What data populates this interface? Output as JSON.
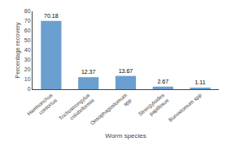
{
  "chart_data": {
    "type": "bar",
    "categories": [
      "Haemonchus\ncontortus",
      "Trichostrongylus\ncolubriformis",
      "Oesophagostomum\nspp",
      "Strongyloides\npapillosus",
      "Bunostomum spp"
    ],
    "values": [
      70.18,
      12.37,
      13.67,
      2.67,
      1.11
    ],
    "color": "#6a9fd0",
    "xlabel": "Worm species",
    "ylabel": "Percentage recovery",
    "ylim": [
      0,
      80
    ],
    "yticks": [
      0,
      10,
      20,
      30,
      40,
      50,
      60,
      70,
      80
    ],
    "data_labels": true,
    "grid": false
  }
}
